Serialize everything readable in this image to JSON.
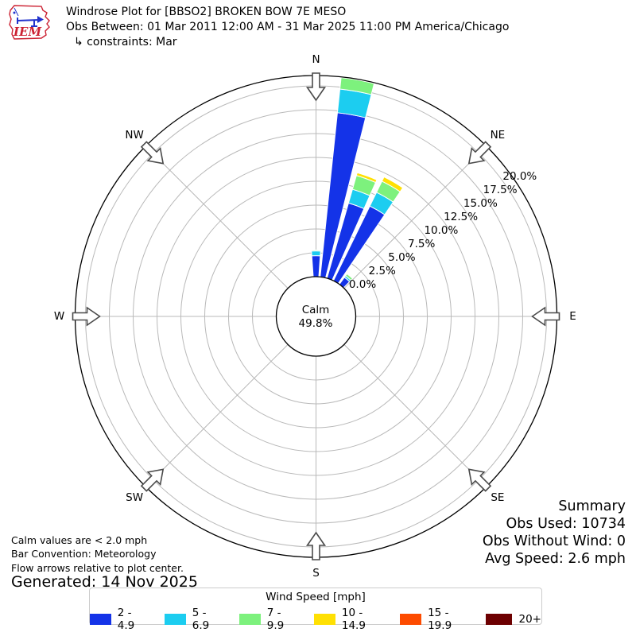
{
  "header": {
    "logo_text": "IEM",
    "title": "Windrose Plot for [BBSO2] BROKEN BOW 7E MESO",
    "subtitle": "Obs Between: 01 Mar 2011 12:00 AM - 31 Mar 2025 11:00 PM America/Chicago",
    "constraints": "↳ constraints: Mar"
  },
  "chart_data": {
    "type": "windrose-polar-stacked-bar",
    "center_label": {
      "line1": "Calm",
      "line2": "49.8%"
    },
    "calm_percent": 49.8,
    "radial_ticks": [
      "0.0%",
      "2.5%",
      "5.0%",
      "7.5%",
      "10.0%",
      "12.5%",
      "15.0%",
      "17.5%",
      "20.0%"
    ],
    "radial_tick_values": [
      0,
      2.5,
      5,
      7.5,
      10,
      12.5,
      15,
      17.5,
      20
    ],
    "radial_axis_max_percent": 21.1,
    "compass": [
      {
        "label": "N",
        "deg": 0
      },
      {
        "label": "NE",
        "deg": 45
      },
      {
        "label": "E",
        "deg": 90
      },
      {
        "label": "SE",
        "deg": 135
      },
      {
        "label": "S",
        "deg": 180
      },
      {
        "label": "SW",
        "deg": 225
      },
      {
        "label": "W",
        "deg": 270
      },
      {
        "label": "NW",
        "deg": 315
      }
    ],
    "speed_bins": [
      {
        "label": "2 - 4.9",
        "color": "#1433e8"
      },
      {
        "label": "5 - 6.9",
        "color": "#1ccdf0"
      },
      {
        "label": "7 - 9.9",
        "color": "#7df17d"
      },
      {
        "label": "10 - 14.9",
        "color": "#ffe003"
      },
      {
        "label": "15 - 19.9",
        "color": "#fd4b00"
      },
      {
        "label": "20+",
        "color": "#6d0001"
      }
    ],
    "sector_width_deg": 8,
    "sectors": [
      {
        "direction_deg": 0,
        "values": [
          2.2,
          0.5,
          0.1,
          0,
          0,
          0
        ]
      },
      {
        "direction_deg": 10,
        "values": [
          17.3,
          2.5,
          1.2,
          0,
          0,
          0
        ]
      },
      {
        "direction_deg": 20,
        "values": [
          8.2,
          1.5,
          1.5,
          0.3,
          0,
          0
        ]
      },
      {
        "direction_deg": 30,
        "values": [
          8.7,
          1.6,
          1.3,
          0.5,
          0,
          0
        ]
      },
      {
        "direction_deg": 40,
        "values": [
          0.9,
          0.2,
          0.25,
          0,
          0,
          0
        ]
      }
    ]
  },
  "notes": {
    "calm_note": "Calm values are < 2.0 mph",
    "convention_note": "Bar Convention: Meteorology",
    "arrows_note": "Flow arrows relative to plot center.",
    "generated": "Generated: 14 Nov 2025"
  },
  "summary": {
    "title": "Summary",
    "obs_used": "Obs Used: 10734",
    "obs_without_wind": "Obs Without Wind: 0",
    "avg_speed": "Avg Speed: 2.6 mph"
  },
  "legend": {
    "title": "Wind Speed [mph]"
  }
}
